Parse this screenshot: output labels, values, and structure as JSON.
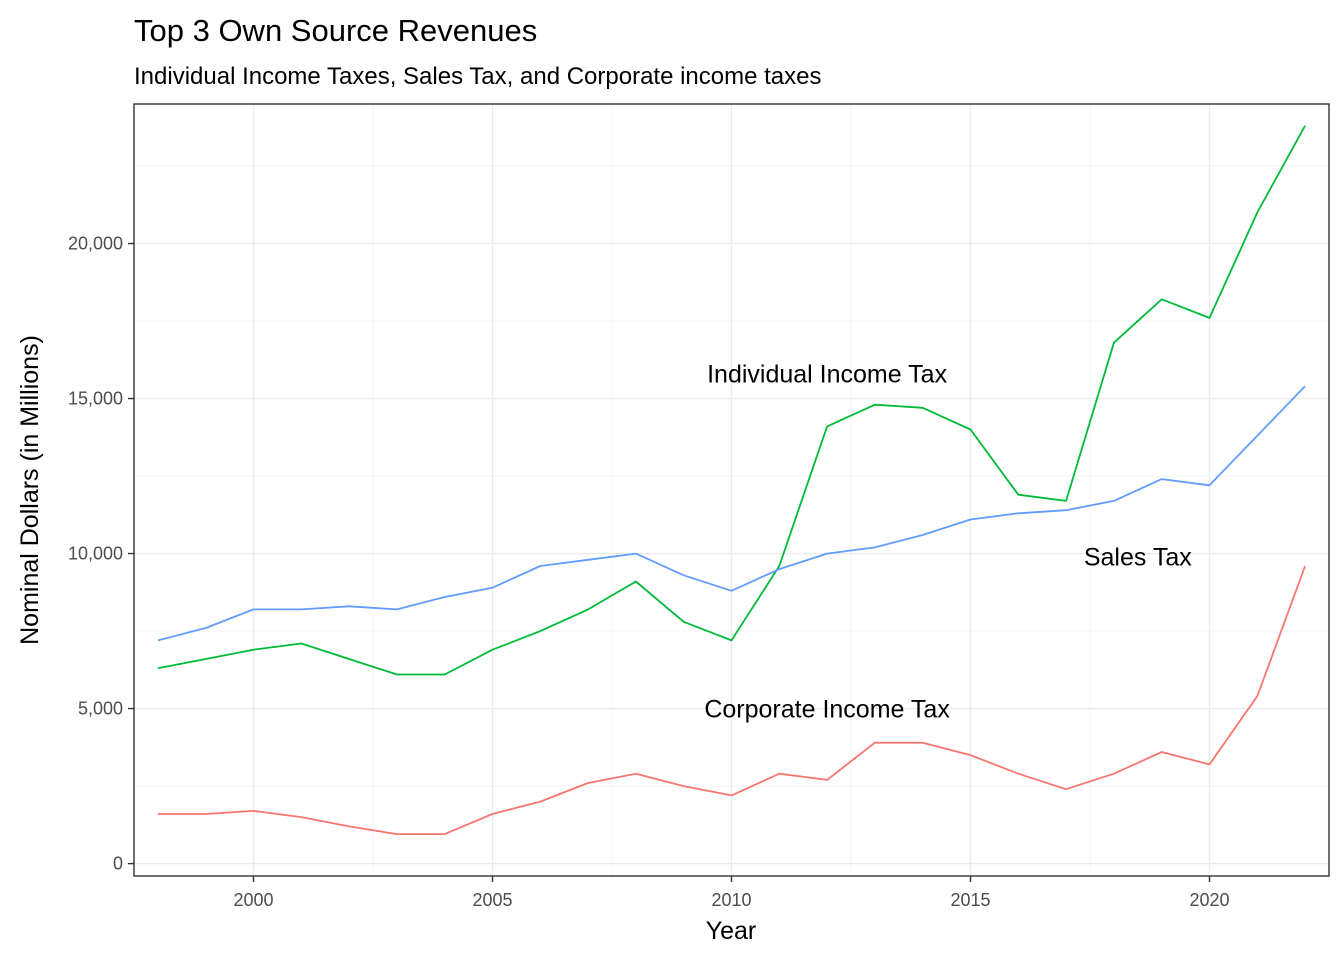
{
  "chart_data": {
    "type": "line",
    "title": "Top 3 Own Source Revenues",
    "subtitle": "Individual Income Taxes, Sales Tax, and Corporate income taxes",
    "xlabel": "Year",
    "ylabel": "Nominal Dollars (in Millions)",
    "xlim": [
      1997.5,
      2022.5
    ],
    "ylim": [
      -400,
      24500
    ],
    "x_ticks": [
      2000,
      2005,
      2010,
      2015,
      2020
    ],
    "x_tick_labels": [
      "2000",
      "2005",
      "2010",
      "2015",
      "2020"
    ],
    "y_ticks": [
      0,
      5000,
      10000,
      15000,
      20000
    ],
    "y_tick_labels": [
      "0",
      "5,000",
      "10,000",
      "15,000",
      "20,000"
    ],
    "grid": true,
    "x": [
      1998,
      1999,
      2000,
      2001,
      2002,
      2003,
      2004,
      2005,
      2006,
      2007,
      2008,
      2009,
      2010,
      2011,
      2012,
      2013,
      2014,
      2015,
      2016,
      2017,
      2018,
      2019,
      2020,
      2021,
      2022
    ],
    "series": [
      {
        "key": "individual",
        "color": "#00ba38",
        "values": [
          6300,
          6600,
          6900,
          7100,
          6600,
          6100,
          6100,
          6900,
          7500,
          8200,
          9100,
          7800,
          7200,
          9600,
          14100,
          14800,
          14700,
          14000,
          11900,
          11700,
          16800,
          18200,
          17600,
          21000,
          23800
        ]
      },
      {
        "key": "sales",
        "color": "#619cff",
        "values": [
          7200,
          7600,
          8200,
          8200,
          8300,
          8200,
          8600,
          8900,
          9600,
          9800,
          10000,
          9300,
          8800,
          9500,
          10000,
          10200,
          10600,
          11100,
          11300,
          11400,
          11700,
          12400,
          12200,
          13800,
          15400
        ]
      },
      {
        "key": "corporate",
        "color": "#f8766d",
        "values": [
          1600,
          1600,
          1700,
          1500,
          1200,
          950,
          950,
          1600,
          2000,
          2600,
          2900,
          2500,
          2200,
          2900,
          2700,
          3900,
          3900,
          3500,
          2900,
          2400,
          2900,
          3600,
          3200,
          5400,
          9600
        ]
      }
    ],
    "annotations": [
      {
        "text": "Individual Income Tax",
        "x": 2012,
        "y": 15800
      },
      {
        "text": "Sales Tax",
        "x": 2018.5,
        "y": 9900
      },
      {
        "text": "Corporate Income Tax",
        "x": 2012,
        "y": 5000
      }
    ]
  }
}
